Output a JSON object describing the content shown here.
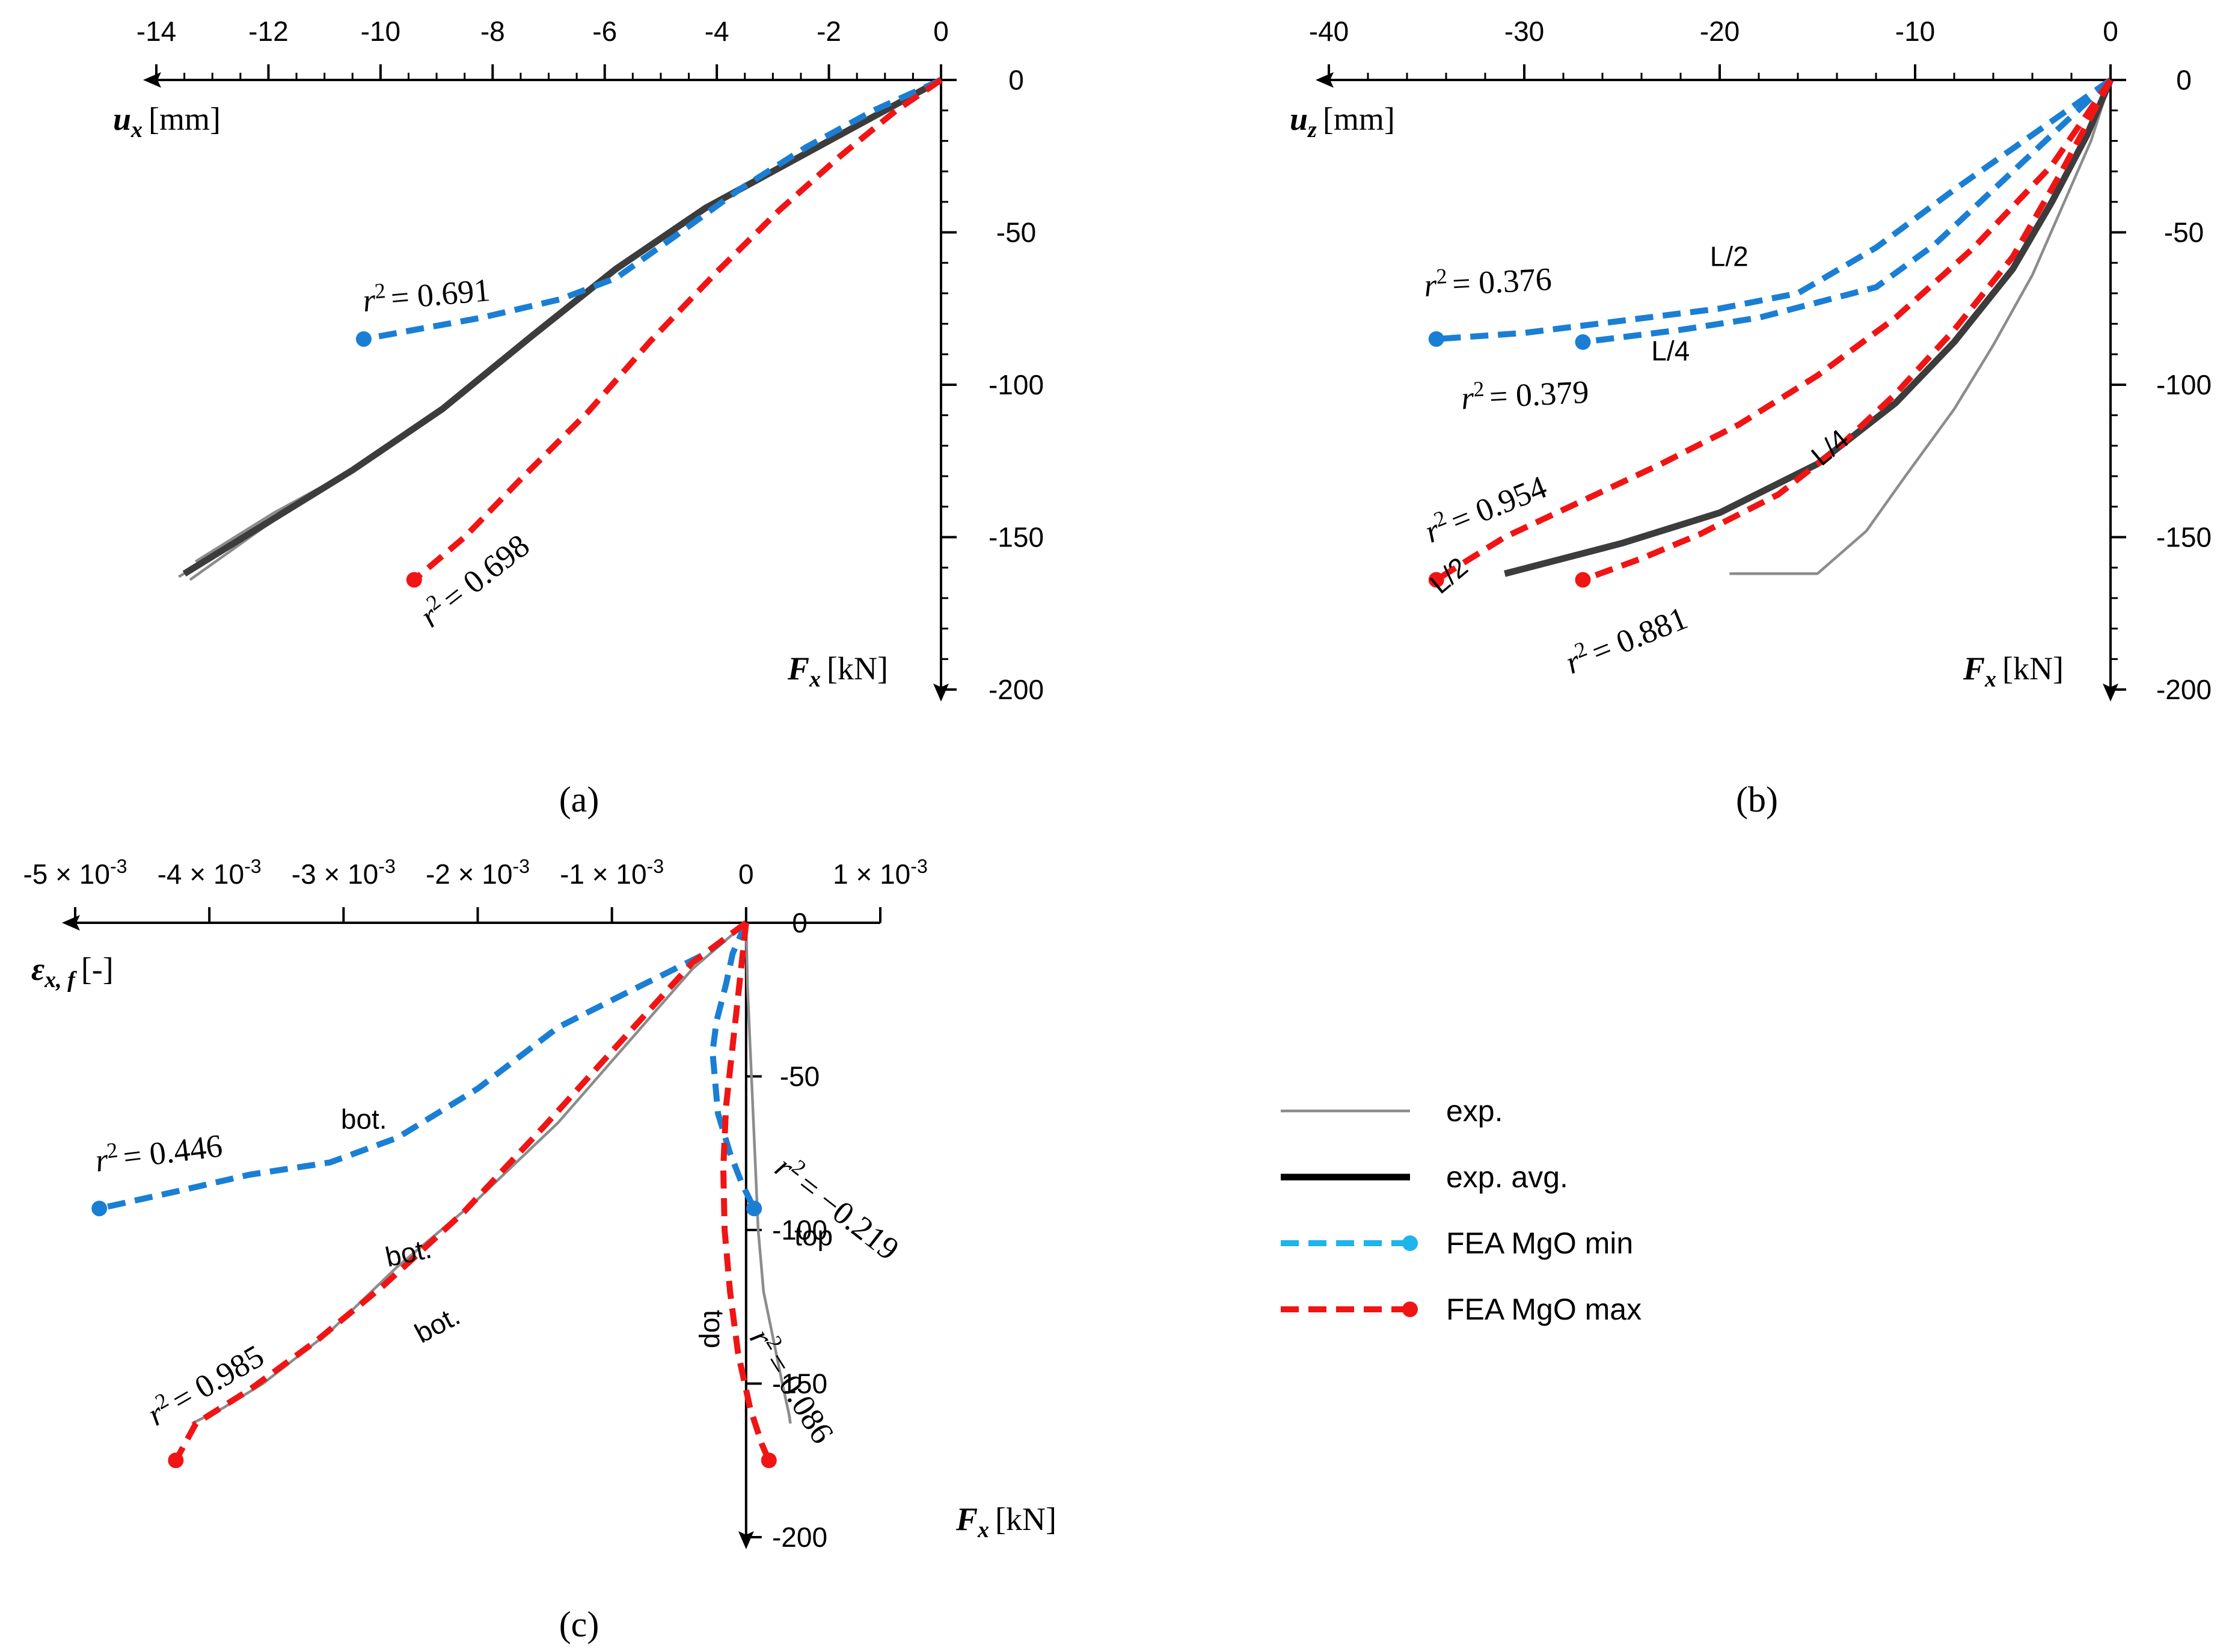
{
  "colors": {
    "exp": "#8c8c8c",
    "exp_avg": "#3c3c3c",
    "fea_min": "#1a7fd4",
    "fea_max": "#f01414",
    "fea_min_legend": "#1fb4ec",
    "axis": "#000000"
  },
  "legend": {
    "items": [
      {
        "label": "exp.",
        "style": "exp"
      },
      {
        "label": "exp. avg.",
        "style": "avg"
      },
      {
        "label": "FEA MgO min",
        "style": "min"
      },
      {
        "label": "FEA MgO max",
        "style": "max"
      }
    ]
  },
  "chart_data": [
    {
      "panel_label": "(a)",
      "type": "line",
      "x_axis_label": {
        "sym": "u",
        "sub": "x",
        "unit": "[mm]"
      },
      "y_axis_label": {
        "sym": "F",
        "sub": "x",
        "unit": "[kN]"
      },
      "xlim": [
        -14,
        0
      ],
      "ylim": [
        -200,
        0
      ],
      "x_ticks": [
        -14,
        -12,
        -10,
        -8,
        -6,
        -4,
        -2,
        0
      ],
      "x_tick_labels": [
        "-14",
        "-12",
        "-10",
        "-8",
        "-6",
        "-4",
        "-2",
        "0"
      ],
      "y_ticks": [
        0,
        -50,
        -100,
        -150,
        -200
      ],
      "y_tick_labels": [
        "0",
        "-50",
        "-100",
        "-150",
        "-200"
      ],
      "series": [
        {
          "style": "exp",
          "x": [
            0,
            -1.2,
            -2.6,
            -4.2,
            -5.8,
            -7.3,
            -8.9,
            -10.5,
            -12,
            -13.6
          ],
          "y": [
            0,
            -12,
            -26,
            -42,
            -62,
            -84,
            -108,
            -128,
            -145,
            -163
          ]
        },
        {
          "style": "exp",
          "x": [
            0,
            -1.3,
            -2.7,
            -4.3,
            -5.9,
            -7.4,
            -9.0,
            -10.6,
            -12.1,
            -13.4
          ],
          "y": [
            0,
            -13,
            -27,
            -43,
            -63,
            -86,
            -110,
            -129,
            -147,
            -164
          ]
        },
        {
          "style": "exp",
          "x": [
            0,
            -1.1,
            -2.5,
            -4.1,
            -5.7,
            -7.2,
            -8.8,
            -10.4,
            -11.9,
            -13.3
          ],
          "y": [
            0,
            -11,
            -25,
            -41,
            -61,
            -83,
            -107,
            -127,
            -142,
            -158
          ]
        },
        {
          "style": "avg",
          "x": [
            0,
            -1.2,
            -2.6,
            -4.2,
            -5.8,
            -7.3,
            -8.9,
            -10.5,
            -12,
            -13.5
          ],
          "y": [
            0,
            -12,
            -26,
            -42,
            -62,
            -84,
            -108,
            -128,
            -145,
            -162
          ]
        },
        {
          "style": "min",
          "x": [
            0,
            -1.2,
            -2.4,
            -3.6,
            -4.8,
            -5.8,
            -6.8,
            -8.2,
            -10.3
          ],
          "y": [
            0,
            -10,
            -22,
            -36,
            -52,
            -65,
            -72,
            -78,
            -85
          ]
        },
        {
          "style": "max",
          "x": [
            0,
            -0.8,
            -1.8,
            -2.9,
            -4.0,
            -5.2,
            -6.3,
            -7.5,
            -8.5,
            -9.4
          ],
          "y": [
            0,
            -10,
            -25,
            -43,
            -63,
            -86,
            -109,
            -131,
            -150,
            -164
          ]
        }
      ],
      "annotations": [
        {
          "kind": "r2",
          "value": "= 0.691",
          "x": -10.3,
          "y": -76,
          "angle": -5
        },
        {
          "kind": "r2",
          "value": "= 0.698",
          "x": -9.1,
          "y": -180,
          "angle": -38
        }
      ]
    },
    {
      "panel_label": "(b)",
      "type": "line",
      "x_axis_label": {
        "sym": "u",
        "sub": "z",
        "unit": "[mm]"
      },
      "y_axis_label": {
        "sym": "F",
        "sub": "x",
        "unit": "[kN]"
      },
      "xlim": [
        -40,
        0
      ],
      "ylim": [
        -200,
        0
      ],
      "x_ticks": [
        -40,
        -30,
        -20,
        -10,
        0
      ],
      "x_tick_labels": [
        "-40",
        "-30",
        "-20",
        "-10",
        "0"
      ],
      "y_ticks": [
        0,
        -50,
        -100,
        -150,
        -200
      ],
      "y_tick_labels": [
        "0",
        "-50",
        "-100",
        "-150",
        "-200"
      ],
      "series": [
        {
          "style": "exp",
          "x": [
            0,
            -1,
            -2.5,
            -4,
            -6,
            -8,
            -10.5,
            -12.5,
            -15,
            -19.5
          ],
          "y": [
            0,
            -20,
            -42,
            -64,
            -87,
            -108,
            -130,
            -148,
            -162,
            -162
          ]
        },
        {
          "style": "avg",
          "x": [
            0,
            -1.2,
            -3,
            -5,
            -8,
            -11,
            -15,
            -20,
            -25,
            -31
          ],
          "y": [
            0,
            -18,
            -40,
            -62,
            -86,
            -106,
            -126,
            -142,
            -152,
            -162
          ]
        },
        {
          "style": "min",
          "name": "L/2",
          "x": [
            0,
            -4,
            -8,
            -12,
            -16,
            -20,
            -25,
            -30,
            -34.5
          ],
          "y": [
            0,
            -18,
            -36,
            -55,
            -70,
            -75,
            -79,
            -83,
            -85
          ]
        },
        {
          "style": "min",
          "name": "L/4",
          "x": [
            0,
            -3,
            -6,
            -9,
            -12,
            -15,
            -18,
            -22,
            -27
          ],
          "y": [
            0,
            -18,
            -36,
            -54,
            -68,
            -73,
            -78,
            -82,
            -86
          ]
        },
        {
          "style": "max",
          "name": "L/2",
          "x": [
            0,
            -3,
            -7,
            -11,
            -15,
            -19,
            -23,
            -27,
            -31,
            -34.5
          ],
          "y": [
            0,
            -28,
            -55,
            -78,
            -97,
            -113,
            -126,
            -138,
            -150,
            -164
          ]
        },
        {
          "style": "max",
          "name": "L/4",
          "x": [
            0,
            -2.5,
            -5,
            -8,
            -11,
            -14,
            -17,
            -21,
            -24,
            -27
          ],
          "y": [
            0,
            -30,
            -58,
            -82,
            -103,
            -121,
            -136,
            -149,
            -157,
            -164
          ]
        }
      ],
      "annotations": [
        {
          "kind": "r2",
          "value": "= 0.376",
          "x": -35.1,
          "y": -71,
          "angle": -3
        },
        {
          "kind": "r2",
          "value": "= 0.379",
          "x": -33.2,
          "y": -108,
          "angle": -3
        },
        {
          "kind": "r2",
          "value": "= 0.954",
          "x": -34.8,
          "y": -152,
          "angle": -22
        },
        {
          "kind": "r2",
          "value": "= 0.881",
          "x": -27.6,
          "y": -195,
          "angle": -22
        },
        {
          "kind": "text",
          "value": "L/2",
          "x": -20.5,
          "y": -61,
          "angle": 0
        },
        {
          "kind": "text",
          "value": "L/4",
          "x": -23.5,
          "y": -92,
          "angle": 0
        },
        {
          "kind": "text",
          "value": "L/2",
          "x": -34.3,
          "y": -169,
          "angle": -40
        },
        {
          "kind": "text",
          "value": "L/4",
          "x": -14.8,
          "y": -127,
          "angle": -40
        }
      ]
    },
    {
      "panel_label": "(c)",
      "type": "line",
      "x_axis_label": {
        "sym": "ε",
        "sub": "x, f",
        "unit": "[-]"
      },
      "y_axis_label": {
        "sym": "F",
        "sub": "x",
        "unit": "[kN]"
      },
      "xlim": [
        -0.005,
        0.001
      ],
      "ylim": [
        -200,
        0
      ],
      "x_ticks": [
        -0.005,
        -0.004,
        -0.003,
        -0.002,
        -0.001,
        0,
        0.001
      ],
      "x_tick_labels": [
        {
          "m": "-5 × 10",
          "e": "-3"
        },
        {
          "m": "-4 × 10",
          "e": "-3"
        },
        {
          "m": "-3 × 10",
          "e": "-3"
        },
        {
          "m": "-2 × 10",
          "e": "-3"
        },
        {
          "m": "-1 × 10",
          "e": "-3"
        },
        {
          "m": "0",
          "e": ""
        },
        {
          "m": "1 × 10",
          "e": "-3"
        }
      ],
      "y_ticks": [
        0,
        -50,
        -100,
        -150,
        -200
      ],
      "y_tick_labels": [
        "0",
        "-50",
        "-100",
        "-150",
        "-200"
      ],
      "series": [
        {
          "style": "exp",
          "x": [
            0,
            -0.0004,
            -0.0009,
            -0.0014,
            -0.002,
            -0.0026,
            -0.0031,
            -0.0036,
            -0.0039,
            -0.00413
          ],
          "y": [
            0,
            -15,
            -40,
            -65,
            -90,
            -112,
            -133,
            -150,
            -158,
            -163
          ]
        },
        {
          "style": "exp",
          "x": [
            0,
            1e-05,
            3e-05,
            5e-05,
            7e-05,
            9e-05,
            0.00011,
            0.00013,
            0.0002,
            0.00027,
            0.00032,
            0.00033
          ],
          "y": [
            0,
            -20,
            -40,
            -60,
            -80,
            -100,
            -110,
            -120,
            -135,
            -150,
            -160,
            -163
          ]
        },
        {
          "style": "min",
          "x": [
            0,
            -0.0003,
            -0.0009,
            -0.0014,
            -0.002,
            -0.0026,
            -0.0031,
            -0.0037,
            -0.0042,
            -0.00482
          ],
          "y": [
            0,
            -10,
            -23,
            -34,
            -54,
            -70,
            -78,
            -82,
            -87,
            -93
          ]
        },
        {
          "style": "min",
          "x": [
            0,
            -0.0001,
            -0.00015,
            -0.00022,
            -0.00025,
            -0.00023,
            -0.00021,
            -0.00012,
            -3e-05,
            6e-05
          ],
          "y": [
            0,
            -10,
            -20,
            -32,
            -42,
            -52,
            -62,
            -75,
            -85,
            -93
          ]
        },
        {
          "style": "max",
          "x": [
            0,
            -0.0004,
            -0.0009,
            -0.0015,
            -0.0021,
            -0.0027,
            -0.0032,
            -0.0037,
            -0.0041,
            -0.00425
          ],
          "y": [
            0,
            -13,
            -37,
            -66,
            -94,
            -118,
            -136,
            -152,
            -163,
            -175
          ]
        },
        {
          "style": "max",
          "x": [
            0,
            -5e-05,
            -0.0001,
            -0.00015,
            -0.00017,
            -0.00016,
            -0.00012,
            -6e-05,
            3e-05,
            0.00012,
            0.00017
          ],
          "y": [
            0,
            -20,
            -40,
            -60,
            -80,
            -100,
            -120,
            -140,
            -158,
            -170,
            -175
          ]
        }
      ],
      "annotations": [
        {
          "kind": "r2",
          "value": "= 0.446",
          "x": -0.00484,
          "y": -81,
          "angle": -7
        },
        {
          "kind": "r2",
          "value": "= 0.985",
          "x": -0.0044,
          "y": -164,
          "angle": -30
        },
        {
          "kind": "r2",
          "value": "= −0.219",
          "x": 0.0002,
          "y": -81,
          "angle": 38
        },
        {
          "kind": "r2",
          "value": "= 0.086",
          "x": 2e-05,
          "y": -135,
          "angle": 58
        },
        {
          "kind": "text",
          "value": "bot.",
          "x": -0.00302,
          "y": -67,
          "angle": 0
        },
        {
          "kind": "text",
          "value": "bot.",
          "x": -0.00267,
          "y": -112,
          "angle": -12
        },
        {
          "kind": "text",
          "value": "bot.",
          "x": -0.00242,
          "y": -137,
          "angle": -28
        },
        {
          "kind": "text",
          "value": "top",
          "x": 0.00036,
          "y": -105,
          "angle": 0
        },
        {
          "kind": "text",
          "value": "top",
          "x": -0.00031,
          "y": -126,
          "angle": 90
        }
      ]
    }
  ]
}
